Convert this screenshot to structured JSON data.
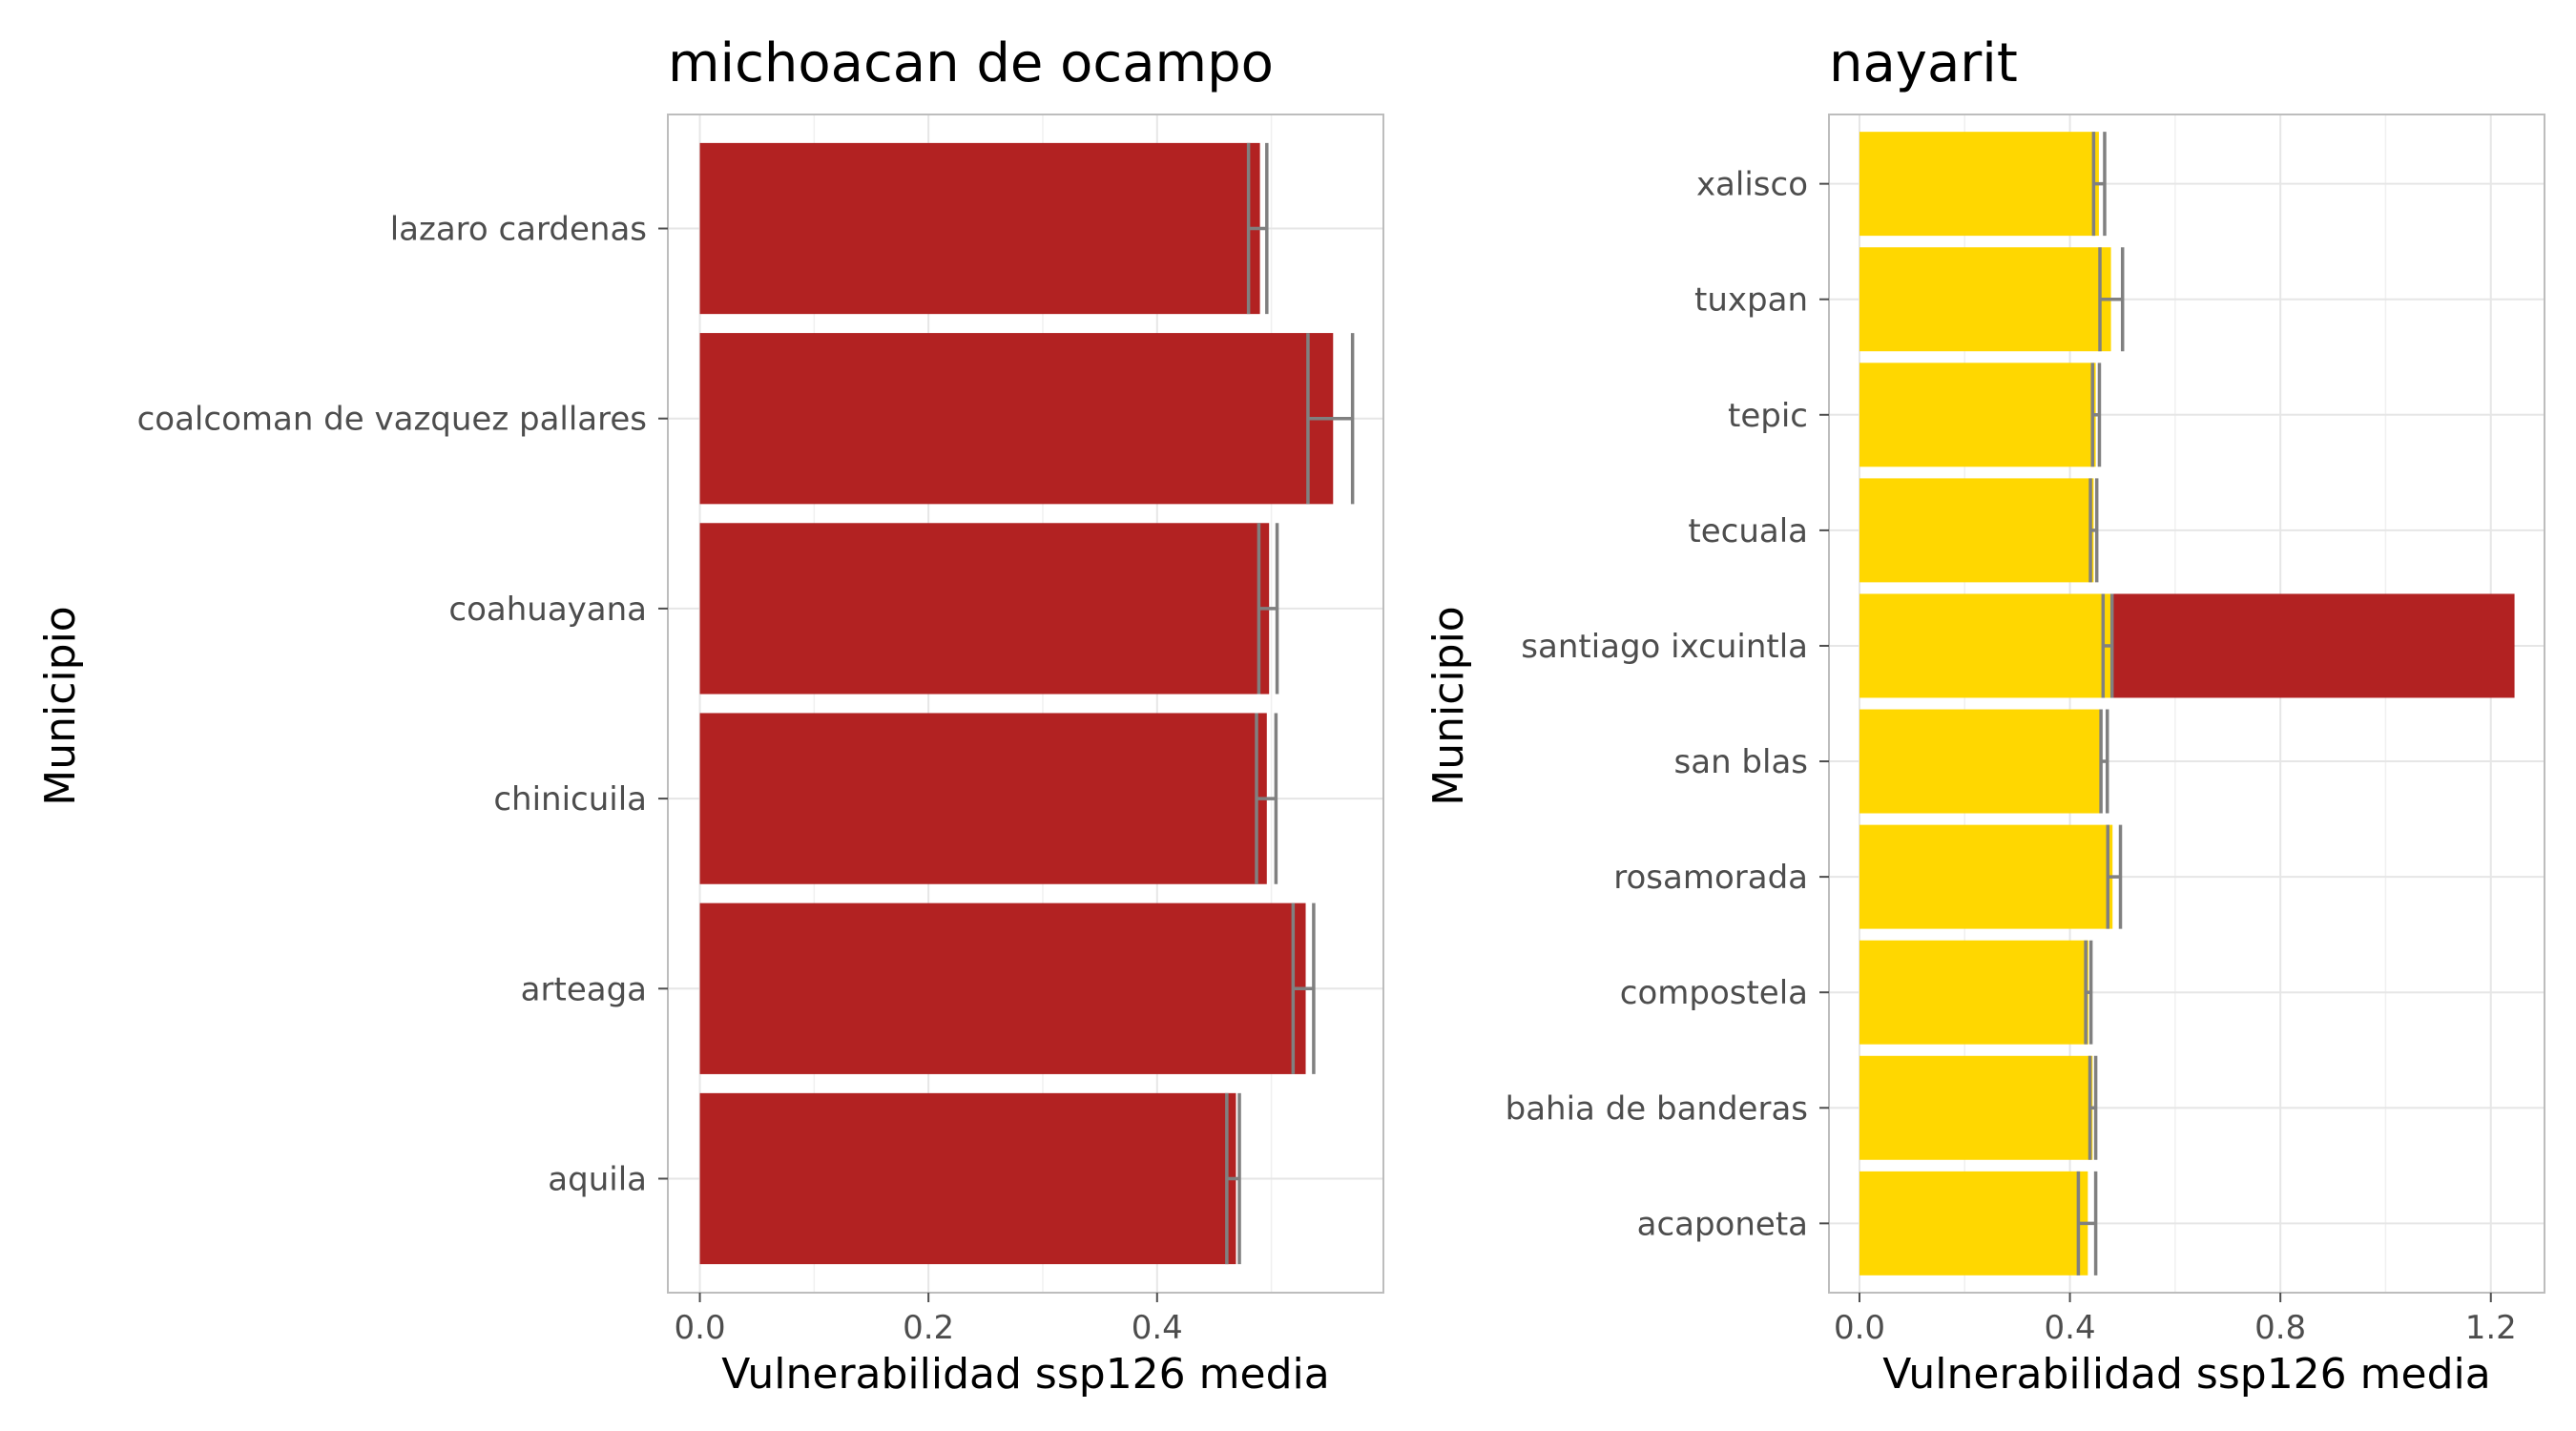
{
  "chart_data": [
    {
      "type": "bar",
      "orientation": "horizontal",
      "title": "michoacan de ocampo",
      "xlabel": "Vulnerabilidad ssp126 media",
      "ylabel": "Municipio",
      "xlim": [
        -0.028,
        0.598
      ],
      "xticks": [
        0.0,
        0.2,
        0.4
      ],
      "xtick_labels": [
        "0.0",
        "0.2",
        "0.4"
      ],
      "grid": true,
      "categories": [
        "lazaro cardenas",
        "coalcoman de vazquez pallares",
        "coahuayana",
        "chinicuila",
        "arteaga",
        "aquila"
      ],
      "values": [
        0.49,
        0.554,
        0.498,
        0.496,
        0.53,
        0.469
      ],
      "error_bars": [
        {
          "mean": 0.488,
          "low": 0.48,
          "high": 0.496
        },
        {
          "mean": 0.55,
          "low": 0.532,
          "high": 0.571
        },
        {
          "mean": 0.497,
          "low": 0.489,
          "high": 0.505
        },
        {
          "mean": 0.495,
          "low": 0.487,
          "high": 0.504
        },
        {
          "mean": 0.528,
          "low": 0.519,
          "high": 0.537
        },
        {
          "mean": 0.467,
          "low": 0.461,
          "high": 0.472
        }
      ],
      "segments": [
        [
          {
            "value": 0.49,
            "color": "#b22222"
          }
        ],
        [
          {
            "value": 0.554,
            "color": "#b22222"
          }
        ],
        [
          {
            "value": 0.498,
            "color": "#b22222"
          }
        ],
        [
          {
            "value": 0.496,
            "color": "#b22222"
          }
        ],
        [
          {
            "value": 0.53,
            "color": "#b22222"
          }
        ],
        [
          {
            "value": 0.469,
            "color": "#b22222"
          }
        ]
      ]
    },
    {
      "type": "bar",
      "orientation": "horizontal",
      "title": "nayarit",
      "xlabel": "Vulnerabilidad ssp126 media",
      "ylabel": "Municipio",
      "xlim": [
        -0.058,
        1.302
      ],
      "xticks": [
        0.0,
        0.4,
        0.8,
        1.2
      ],
      "xtick_labels": [
        "0.0",
        "0.4",
        "0.8",
        "1.2"
      ],
      "grid": true,
      "categories": [
        "xalisco",
        "tuxpan",
        "tepic",
        "tecuala",
        "santiago ixcuintla",
        "san blas",
        "rosamorada",
        "compostela",
        "bahia de banderas",
        "acaponeta"
      ],
      "values": [
        0.455,
        0.478,
        0.449,
        0.445,
        1.245,
        0.46,
        0.481,
        0.435,
        0.443,
        0.434
      ],
      "error_bars": [
        {
          "mean": 0.455,
          "low": 0.445,
          "high": 0.466
        },
        {
          "mean": 0.478,
          "low": 0.457,
          "high": 0.5
        },
        {
          "mean": 0.449,
          "low": 0.443,
          "high": 0.456
        },
        {
          "mean": 0.445,
          "low": 0.439,
          "high": 0.451
        },
        {
          "mean": 0.472,
          "low": 0.463,
          "high": 0.48
        },
        {
          "mean": 0.465,
          "low": 0.459,
          "high": 0.471
        },
        {
          "mean": 0.485,
          "low": 0.472,
          "high": 0.496
        },
        {
          "mean": 0.435,
          "low": 0.43,
          "high": 0.44
        },
        {
          "mean": 0.443,
          "low": 0.438,
          "high": 0.449
        },
        {
          "mean": 0.434,
          "low": 0.416,
          "high": 0.449
        }
      ],
      "segments": [
        [
          {
            "value": 0.455,
            "color": "#ffd700"
          }
        ],
        [
          {
            "value": 0.478,
            "color": "#ffd700"
          }
        ],
        [
          {
            "value": 0.449,
            "color": "#ffd700"
          }
        ],
        [
          {
            "value": 0.445,
            "color": "#ffd700"
          }
        ],
        [
          {
            "value": 0.478,
            "color": "#ffd700"
          },
          {
            "value": 1.245,
            "color": "#b22222"
          }
        ],
        [
          {
            "value": 0.46,
            "color": "#ffd700"
          }
        ],
        [
          {
            "value": 0.481,
            "color": "#ffd700"
          }
        ],
        [
          {
            "value": 0.435,
            "color": "#ffd700"
          }
        ],
        [
          {
            "value": 0.443,
            "color": "#ffd700"
          }
        ],
        [
          {
            "value": 0.434,
            "color": "#ffd700"
          }
        ]
      ]
    }
  ],
  "colors": {
    "high": "#b22222",
    "low": "#ffd700",
    "error_bar": "#808080",
    "grid": "#e6e6e6",
    "panel_border": "#bdbdbd",
    "tick_text": "#4d4d4d"
  }
}
